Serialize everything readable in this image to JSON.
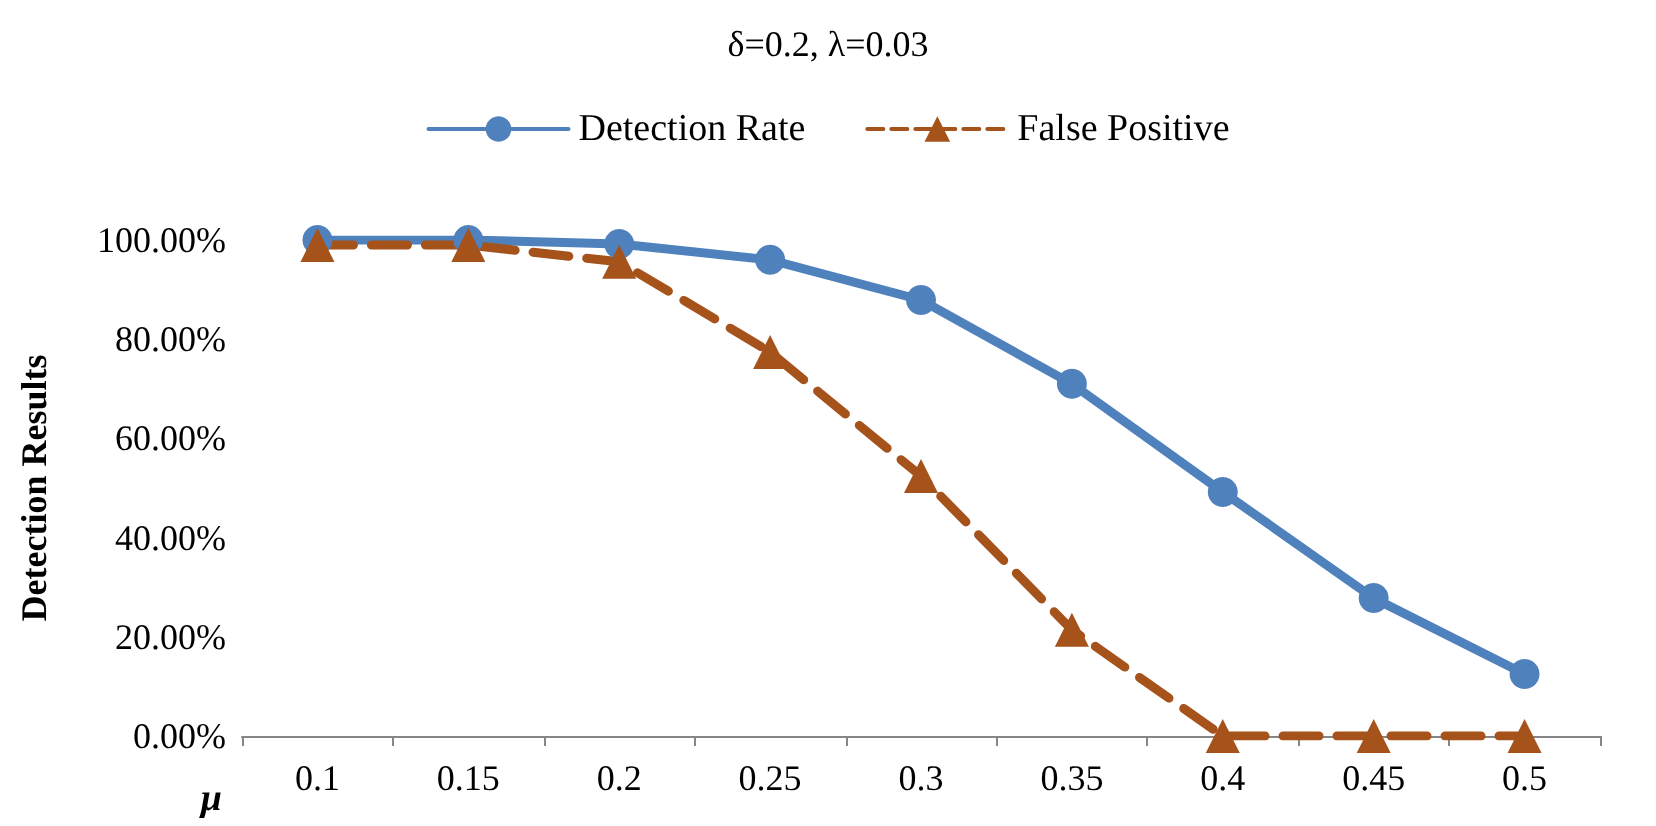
{
  "chart_data": {
    "type": "line",
    "title": "δ=0.2, λ=0.03",
    "xlabel": "μ",
    "ylabel": "Detection Results",
    "categories": [
      "0.1",
      "0.15",
      "0.2",
      "0.25",
      "0.3",
      "0.35",
      "0.4",
      "0.45",
      "0.5"
    ],
    "series": [
      {
        "name": "Detection Rate",
        "color": "#4f81bd",
        "marker": "circle",
        "line_style": "solid",
        "values": [
          100,
          100,
          99.2,
          96,
          87.9,
          71,
          49.2,
          27.8,
          12.5
        ]
      },
      {
        "name": "False Positive",
        "color": "#a5521b",
        "marker": "triangle",
        "line_style": "dashed",
        "values": [
          99,
          99,
          95.6,
          77.4,
          52.4,
          21.4,
          0,
          0,
          0
        ]
      }
    ],
    "ylim": [
      0,
      100
    ],
    "yticks": [
      {
        "value": 0,
        "label": "0.00%"
      },
      {
        "value": 20,
        "label": "20.00%"
      },
      {
        "value": 40,
        "label": "40.00%"
      },
      {
        "value": 60,
        "label": "60.00%"
      },
      {
        "value": 80,
        "label": "80.00%"
      },
      {
        "value": 100,
        "label": "100.00%"
      }
    ],
    "grid": false,
    "legend": "top"
  }
}
